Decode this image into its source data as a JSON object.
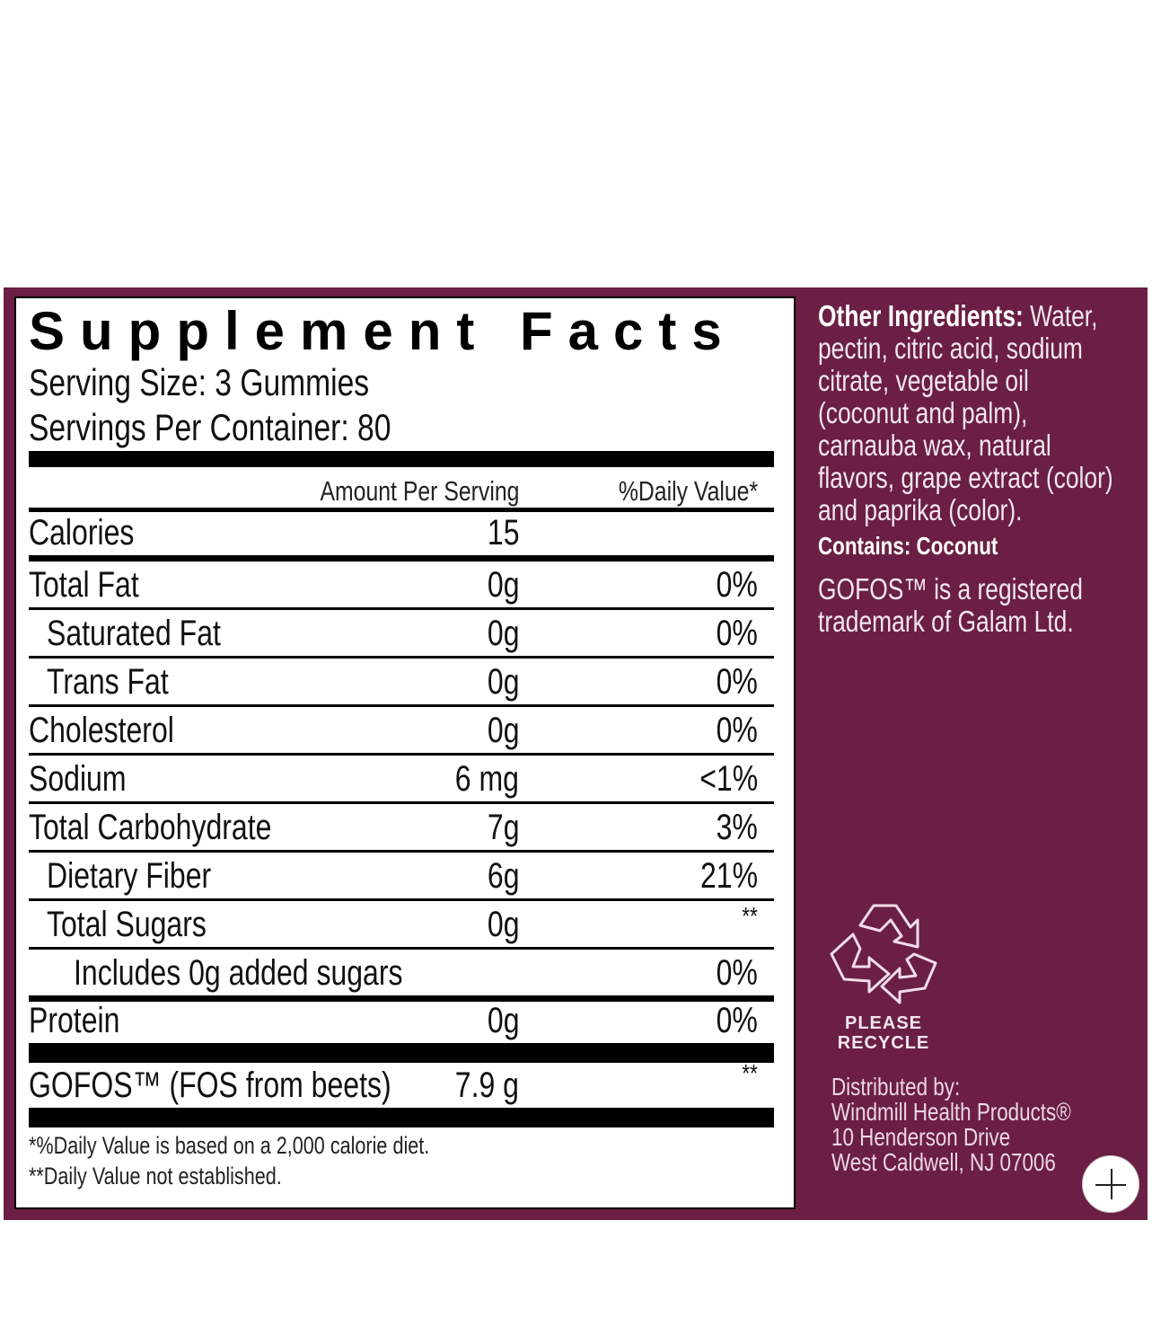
{
  "colors": {
    "brand_purple": "#6b1f45",
    "text_light": "#f3e6ee"
  },
  "facts": {
    "title": "Supplement Facts",
    "serving_size": "Serving Size: 3 Gummies",
    "servings_per_container": "Servings Per Container: 80",
    "header_amount": "Amount Per Serving",
    "header_dv": "%Daily Value*",
    "calories": {
      "name": "Calories",
      "amount": "15"
    },
    "rows": [
      {
        "name": "Total Fat",
        "amount": "0g",
        "dv": "0%",
        "indent": 0
      },
      {
        "name": "Saturated Fat",
        "amount": "0g",
        "dv": "0%",
        "indent": 1
      },
      {
        "name": "Trans Fat",
        "amount": "0g",
        "dv": "0%",
        "indent": 1
      },
      {
        "name": "Cholesterol",
        "amount": "0g",
        "dv": "0%",
        "indent": 0
      },
      {
        "name": "Sodium",
        "amount": "6 mg",
        "dv": "<1%",
        "indent": 0
      },
      {
        "name": "Total Carbohydrate",
        "amount": "7g",
        "dv": "3%",
        "indent": 0
      },
      {
        "name": "Dietary Fiber",
        "amount": "6g",
        "dv": "21%",
        "indent": 1
      },
      {
        "name": "Total Sugars",
        "amount": "0g",
        "dv": "**",
        "indent": 1
      },
      {
        "name": "Includes 0g added sugars",
        "amount": "",
        "dv": "0%",
        "indent": 2
      }
    ],
    "protein": {
      "name": "Protein",
      "amount": "0g",
      "dv": "0%"
    },
    "gofos": {
      "name": "GOFOS™ (FOS from beets)",
      "amount": "7.9 g",
      "dv": "**"
    },
    "footnote1": "*%Daily Value is based on a 2,000 calorie diet.",
    "footnote2": "**Daily Value not established."
  },
  "side": {
    "other_label": "Other Ingredients:",
    "other_lines": [
      " Water,",
      "pectin, citric acid, sodium",
      "citrate, vegetable oil",
      "(coconut and palm),",
      "carnauba wax, natural",
      "flavors, grape extract (color)",
      "and paprika (color)."
    ],
    "contains": "Contains: Coconut",
    "trademark_lines": [
      "GOFOS™ is a registered",
      "trademark of Galam Ltd."
    ],
    "recycle_line1": "PLEASE",
    "recycle_line2": "RECYCLE",
    "distributor_lines": [
      "Distributed by:",
      "Windmill Health Products®",
      "10 Henderson Drive",
      "West Caldwell, NJ  07006"
    ]
  },
  "icons": {
    "recycle": "recycle-icon",
    "zoom": "plus-icon"
  }
}
